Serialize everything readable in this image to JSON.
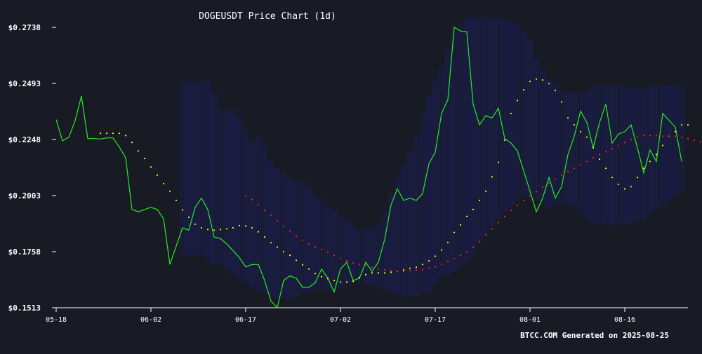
{
  "chart_data": {
    "type": "line",
    "title": "DOGEUSDT Price Chart (1d)",
    "footer": "BTCC.COM Generated on 2025-08-25",
    "x_start_date": "2025-05-18",
    "x_tick_labels": [
      "05-18",
      "06-02",
      "06-17",
      "07-02",
      "07-17",
      "08-01",
      "08-16"
    ],
    "x_tick_days": [
      0,
      15,
      30,
      45,
      60,
      75,
      90
    ],
    "x_range_days": [
      0,
      99
    ],
    "y_tick_labels": [
      "$0.1513",
      "$0.1758",
      "$0.2003",
      "$0.2248",
      "$0.2493",
      "$0.2738"
    ],
    "y_tick_values": [
      0.1513,
      0.1758,
      0.2003,
      0.2248,
      0.2493,
      0.2738
    ],
    "ylim": [
      0.1513,
      0.2738
    ],
    "grid": false,
    "colors": {
      "background": "#181b24",
      "price": "#22ee22",
      "ma_short": "#ffff00",
      "ma_long": "#ff2222",
      "bands": "#1c1c6e",
      "axis": "#ffffff"
    },
    "series": [
      {
        "style": "line",
        "color": "#22ee22",
        "start_day": 0,
        "values": [
          0.2335,
          0.2242,
          0.2258,
          0.233,
          0.2438,
          0.2252,
          0.2252,
          0.225,
          0.2255,
          0.2255,
          0.2215,
          0.2168,
          0.1943,
          0.1932,
          0.1942,
          0.1952,
          0.1942,
          0.1902,
          0.1702,
          0.1782,
          0.1862,
          0.1852,
          0.1952,
          0.1992,
          0.1942,
          0.1822,
          0.1815,
          0.1792,
          0.1762,
          0.1732,
          0.1692,
          0.1702,
          0.1702,
          0.1632,
          0.1542,
          0.1513,
          0.1632,
          0.1652,
          0.1642,
          0.1602,
          0.1602,
          0.1622,
          0.1682,
          0.1642,
          0.1582,
          0.1682,
          0.1712,
          0.1632,
          0.1642,
          0.1712,
          0.1672,
          0.1712,
          0.1812,
          0.1962,
          0.2032,
          0.1982,
          0.1992,
          0.1982,
          0.2012,
          0.2142,
          0.2192,
          0.2362,
          0.2422,
          0.2738,
          0.2722,
          0.2718,
          0.2402,
          0.2312,
          0.2352,
          0.2342,
          0.2385,
          0.2252,
          0.2232,
          0.2198,
          0.2112,
          0.2022,
          0.1932,
          0.1992,
          0.2082,
          0.1992,
          0.2042,
          0.2182,
          0.2262,
          0.2372,
          0.2322,
          0.2212,
          0.2322,
          0.2402,
          0.2232,
          0.2272,
          0.2282,
          0.2312,
          0.2212,
          0.2102,
          0.2202,
          0.2152,
          0.2362,
          0.2332,
          0.2302,
          0.2152
        ]
      },
      {
        "style": "dots",
        "color": "#ffff00",
        "start_day": 7,
        "values": [
          0.2275,
          0.2275,
          0.2275,
          0.2275,
          0.2265,
          0.2235,
          0.2198,
          0.2165,
          0.2128,
          0.2092,
          0.2055,
          0.2022,
          0.1982,
          0.194,
          0.1908,
          0.1878,
          0.1862,
          0.1855,
          0.1852,
          0.1855,
          0.1858,
          0.1862,
          0.1872,
          0.187,
          0.1862,
          0.1845,
          0.1822,
          0.1797,
          0.1778,
          0.1758,
          0.1742,
          0.172,
          0.17,
          0.1682,
          0.1662,
          0.1648,
          0.164,
          0.1632,
          0.1625,
          0.1625,
          0.1628,
          0.1645,
          0.1658,
          0.1665,
          0.1665,
          0.1665,
          0.1668,
          0.1672,
          0.1678,
          0.1685,
          0.169,
          0.1702,
          0.1718,
          0.1738,
          0.1765,
          0.1798,
          0.1842,
          0.1875,
          0.1912,
          0.1942,
          0.1982,
          0.2022,
          0.2085,
          0.2148,
          0.2245,
          0.2362,
          0.2418,
          0.2465,
          0.2502,
          0.2512,
          0.2508,
          0.2492,
          0.2462,
          0.2412,
          0.2342,
          0.2312,
          0.2282,
          0.2258,
          0.2212,
          0.2162,
          0.2122,
          0.2082,
          0.2052,
          0.2032,
          0.2042,
          0.2082,
          0.2122,
          0.2152,
          0.2182,
          0.2222,
          0.2262,
          0.2282,
          0.2312,
          0.2312
        ]
      },
      {
        "style": "dots",
        "color": "#ff2222",
        "start_day": 30,
        "values": [
          0.2002,
          0.1985,
          0.1962,
          0.1938,
          0.1918,
          0.1892,
          0.1868,
          0.1848,
          0.1825,
          0.1808,
          0.1792,
          0.1778,
          0.1768,
          0.1755,
          0.1742,
          0.1728,
          0.1718,
          0.1708,
          0.1702,
          0.1698,
          0.169,
          0.1682,
          0.1678,
          0.1675,
          0.1672,
          0.1672,
          0.1675,
          0.1678,
          0.168,
          0.1685,
          0.1692,
          0.1702,
          0.1715,
          0.1728,
          0.1742,
          0.1758,
          0.1778,
          0.1802,
          0.1832,
          0.1858,
          0.1885,
          0.1912,
          0.1938,
          0.196,
          0.1982,
          0.2002,
          0.202,
          0.204,
          0.2058,
          0.2075,
          0.2092,
          0.2108,
          0.2122,
          0.2138,
          0.2152,
          0.2168,
          0.2182,
          0.2195,
          0.2208,
          0.2222,
          0.2235,
          0.2248,
          0.2258,
          0.2265,
          0.2265,
          0.2265,
          0.2262,
          0.2262,
          0.2262,
          0.2258,
          0.2252,
          0.2245,
          0.2238,
          0.2228,
          0.2222,
          0.2215
        ]
      }
    ],
    "bands": {
      "style": "vertical-hatch",
      "start_day": 20,
      "upper": [
        0.2502,
        0.2502,
        0.2502,
        0.2502,
        0.2502,
        0.2452,
        0.2382,
        0.2382,
        0.2372,
        0.2352,
        0.2292,
        0.2242,
        0.2262,
        0.2222,
        0.2152,
        0.2122,
        0.2102,
        0.2082,
        0.2062,
        0.2062,
        0.2042,
        0.2002,
        0.1992,
        0.1962,
        0.1942,
        0.1912,
        0.1892,
        0.1872,
        0.1852,
        0.1852,
        0.1862,
        0.1882,
        0.1932,
        0.2012,
        0.2082,
        0.2142,
        0.2202,
        0.2262,
        0.2362,
        0.2442,
        0.2502,
        0.2562,
        0.2642,
        0.2712,
        0.2752,
        0.2782,
        0.2782,
        0.2782,
        0.2782,
        0.2782,
        0.2782,
        0.2772,
        0.2762,
        0.2752,
        0.2722,
        0.2682,
        0.2602,
        0.2552,
        0.2512,
        0.2492,
        0.2462,
        0.2452,
        0.2452,
        0.2452,
        0.2452,
        0.2482,
        0.2482,
        0.2482,
        0.2482,
        0.2482,
        0.2482,
        0.2472,
        0.2472,
        0.2472,
        0.2482,
        0.2482,
        0.2482,
        0.2482,
        0.2482,
        0.2482
      ],
      "lower": [
        0.1742,
        0.1742,
        0.1742,
        0.1742,
        0.1722,
        0.1702,
        0.1702,
        0.1682,
        0.1662,
        0.1642,
        0.1622,
        0.1602,
        0.1582,
        0.1572,
        0.1562,
        0.1552,
        0.1552,
        0.1552,
        0.1562,
        0.1572,
        0.1582,
        0.1592,
        0.1592,
        0.1592,
        0.1592,
        0.1602,
        0.1612,
        0.1622,
        0.1622,
        0.1612,
        0.1612,
        0.1602,
        0.1592,
        0.1582,
        0.1572,
        0.1562,
        0.1562,
        0.1562,
        0.1572,
        0.1582,
        0.1612,
        0.1642,
        0.1652,
        0.1672,
        0.1692,
        0.1712,
        0.1752,
        0.1792,
        0.1832,
        0.1872,
        0.1902,
        0.1932,
        0.1962,
        0.1982,
        0.2002,
        0.2002,
        0.1982,
        0.1962,
        0.1952,
        0.1962,
        0.1962,
        0.1962,
        0.1962,
        0.1922,
        0.1902,
        0.1882,
        0.1882,
        0.1882,
        0.1872,
        0.1882,
        0.1882,
        0.1882,
        0.1892,
        0.1902,
        0.1922,
        0.1942,
        0.1962,
        0.1982,
        0.2002,
        0.2022
      ]
    }
  }
}
